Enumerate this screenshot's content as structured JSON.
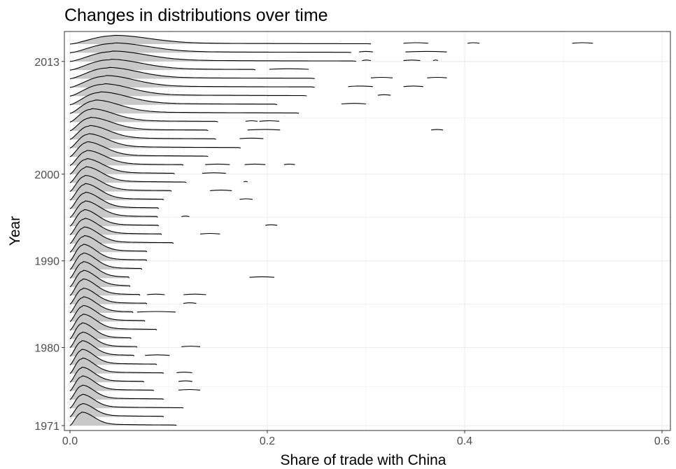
{
  "chart_data": {
    "type": "ridgeline",
    "title": "Changes in distributions over time",
    "xlabel": "Share of trade with China",
    "ylabel": "Year",
    "xlim": [
      0,
      0.6
    ],
    "x_ticks": [
      "0.0",
      "0.2",
      "0.4",
      "0.6"
    ],
    "y_ticks": [
      "1971",
      "1980",
      "1990",
      "2000",
      "2013"
    ],
    "ylim": [
      1971,
      2013
    ],
    "grid": true,
    "fill_color": "#c8c8c8",
    "line_color": "#000000",
    "series": [
      {
        "year": 1971,
        "peak": 0.012,
        "width": 0.012,
        "height": 1.3,
        "tail_end": 0.108,
        "outliers": []
      },
      {
        "year": 1972,
        "peak": 0.012,
        "width": 0.012,
        "height": 1.3,
        "tail_end": 0.095,
        "outliers": []
      },
      {
        "year": 1973,
        "peak": 0.012,
        "width": 0.012,
        "height": 1.35,
        "tail_end": 0.115,
        "outliers": []
      },
      {
        "year": 1974,
        "peak": 0.012,
        "width": 0.012,
        "height": 1.4,
        "tail_end": 0.095,
        "outliers": []
      },
      {
        "year": 1975,
        "peak": 0.012,
        "width": 0.012,
        "height": 1.45,
        "tail_end": 0.085,
        "outliers": [
          [
            0.11,
            0.132
          ]
        ]
      },
      {
        "year": 1976,
        "peak": 0.012,
        "width": 0.012,
        "height": 1.45,
        "tail_end": 0.075,
        "outliers": [
          [
            0.11,
            0.124
          ]
        ]
      },
      {
        "year": 1977,
        "peak": 0.012,
        "width": 0.012,
        "height": 1.5,
        "tail_end": 0.095,
        "outliers": [
          [
            0.108,
            0.124
          ]
        ]
      },
      {
        "year": 1978,
        "peak": 0.012,
        "width": 0.012,
        "height": 1.5,
        "tail_end": 0.088,
        "outliers": []
      },
      {
        "year": 1979,
        "peak": 0.012,
        "width": 0.012,
        "height": 1.5,
        "tail_end": 0.065,
        "outliers": [
          [
            0.076,
            0.101
          ]
        ]
      },
      {
        "year": 1980,
        "peak": 0.012,
        "width": 0.012,
        "height": 1.5,
        "tail_end": 0.068,
        "outliers": [
          [
            0.113,
            0.132
          ]
        ]
      },
      {
        "year": 1981,
        "peak": 0.012,
        "width": 0.012,
        "height": 1.55,
        "tail_end": 0.062,
        "outliers": []
      },
      {
        "year": 1982,
        "peak": 0.013,
        "width": 0.013,
        "height": 1.55,
        "tail_end": 0.088,
        "outliers": []
      },
      {
        "year": 1983,
        "peak": 0.013,
        "width": 0.013,
        "height": 1.55,
        "tail_end": 0.076,
        "outliers": []
      },
      {
        "year": 1984,
        "peak": 0.013,
        "width": 0.013,
        "height": 1.55,
        "tail_end": 0.064,
        "outliers": [
          [
            0.068,
            0.107
          ]
        ]
      },
      {
        "year": 1985,
        "peak": 0.013,
        "width": 0.013,
        "height": 1.55,
        "tail_end": 0.078,
        "outliers": [
          [
            0.115,
            0.128
          ]
        ]
      },
      {
        "year": 1986,
        "peak": 0.013,
        "width": 0.013,
        "height": 1.6,
        "tail_end": 0.071,
        "outliers": [
          [
            0.078,
            0.096
          ],
          [
            0.115,
            0.138
          ]
        ]
      },
      {
        "year": 1987,
        "peak": 0.013,
        "width": 0.013,
        "height": 1.6,
        "tail_end": 0.061,
        "outliers": []
      },
      {
        "year": 1988,
        "peak": 0.013,
        "width": 0.013,
        "height": 1.6,
        "tail_end": 0.06,
        "outliers": [
          [
            0.182,
            0.207
          ]
        ]
      },
      {
        "year": 1989,
        "peak": 0.013,
        "width": 0.013,
        "height": 1.6,
        "tail_end": 0.073,
        "outliers": []
      },
      {
        "year": 1990,
        "peak": 0.013,
        "width": 0.013,
        "height": 1.6,
        "tail_end": 0.078,
        "outliers": []
      },
      {
        "year": 1991,
        "peak": 0.014,
        "width": 0.014,
        "height": 1.6,
        "tail_end": 0.078,
        "outliers": []
      },
      {
        "year": 1992,
        "peak": 0.014,
        "width": 0.014,
        "height": 1.6,
        "tail_end": 0.105,
        "outliers": []
      },
      {
        "year": 1993,
        "peak": 0.014,
        "width": 0.014,
        "height": 1.6,
        "tail_end": 0.093,
        "outliers": [
          [
            0.132,
            0.152
          ]
        ]
      },
      {
        "year": 1994,
        "peak": 0.014,
        "width": 0.014,
        "height": 1.6,
        "tail_end": 0.09,
        "outliers": [
          [
            0.198,
            0.21
          ]
        ]
      },
      {
        "year": 1995,
        "peak": 0.015,
        "width": 0.015,
        "height": 1.6,
        "tail_end": 0.089,
        "outliers": [
          [
            0.113,
            0.121
          ]
        ]
      },
      {
        "year": 1996,
        "peak": 0.015,
        "width": 0.015,
        "height": 1.6,
        "tail_end": 0.09,
        "outliers": []
      },
      {
        "year": 1997,
        "peak": 0.015,
        "width": 0.015,
        "height": 1.6,
        "tail_end": 0.095,
        "outliers": [
          [
            0.172,
            0.185
          ]
        ]
      },
      {
        "year": 1998,
        "peak": 0.015,
        "width": 0.016,
        "height": 1.55,
        "tail_end": 0.103,
        "outliers": [
          [
            0.142,
            0.164
          ]
        ]
      },
      {
        "year": 1999,
        "peak": 0.016,
        "width": 0.016,
        "height": 1.55,
        "tail_end": 0.118,
        "outliers": [
          [
            0.176,
            0.18
          ]
        ]
      },
      {
        "year": 2000,
        "peak": 0.016,
        "width": 0.017,
        "height": 1.5,
        "tail_end": 0.106,
        "outliers": [
          [
            0.134,
            0.158
          ]
        ]
      },
      {
        "year": 2001,
        "peak": 0.017,
        "width": 0.018,
        "height": 1.45,
        "tail_end": 0.115,
        "outliers": [
          [
            0.137,
            0.162
          ],
          [
            0.177,
            0.198
          ],
          [
            0.217,
            0.228
          ]
        ]
      },
      {
        "year": 2002,
        "peak": 0.017,
        "width": 0.018,
        "height": 1.45,
        "tail_end": 0.14,
        "outliers": []
      },
      {
        "year": 2003,
        "peak": 0.018,
        "width": 0.019,
        "height": 1.4,
        "tail_end": 0.173,
        "outliers": []
      },
      {
        "year": 2004,
        "peak": 0.019,
        "width": 0.02,
        "height": 1.35,
        "tail_end": 0.148,
        "outliers": [
          [
            0.172,
            0.196
          ]
        ]
      },
      {
        "year": 2005,
        "peak": 0.02,
        "width": 0.022,
        "height": 1.3,
        "tail_end": 0.14,
        "outliers": [
          [
            0.18,
            0.213
          ],
          [
            0.366,
            0.378
          ]
        ]
      },
      {
        "year": 2006,
        "peak": 0.021,
        "width": 0.023,
        "height": 1.3,
        "tail_end": 0.15,
        "outliers": [
          [
            0.178,
            0.19
          ],
          [
            0.192,
            0.212
          ]
        ]
      },
      {
        "year": 2007,
        "peak": 0.025,
        "width": 0.025,
        "height": 1.3,
        "tail_end": 0.232,
        "outliers": []
      },
      {
        "year": 2008,
        "peak": 0.03,
        "width": 0.028,
        "height": 1.25,
        "tail_end": 0.21,
        "outliers": [
          [
            0.275,
            0.3
          ]
        ]
      },
      {
        "year": 2009,
        "peak": 0.033,
        "width": 0.028,
        "height": 1.2,
        "tail_end": 0.24,
        "outliers": [
          [
            0.312,
            0.325
          ]
        ]
      },
      {
        "year": 2010,
        "peak": 0.036,
        "width": 0.029,
        "height": 1.15,
        "tail_end": 0.248,
        "outliers": [
          [
            0.282,
            0.307
          ],
          [
            0.338,
            0.358
          ]
        ]
      },
      {
        "year": 2011,
        "peak": 0.038,
        "width": 0.03,
        "height": 1.1,
        "tail_end": 0.248,
        "outliers": [
          [
            0.305,
            0.327
          ],
          [
            0.362,
            0.382
          ]
        ]
      },
      {
        "year": 2012,
        "peak": 0.04,
        "width": 0.032,
        "height": 1.05,
        "tail_end": 0.188,
        "outliers": [
          [
            0.202,
            0.242
          ]
        ]
      },
      {
        "year": 2013,
        "peak": 0.043,
        "width": 0.034,
        "height": 1.0,
        "tail_end": 0.29,
        "outliers": [
          [
            0.296,
            0.305
          ],
          [
            0.338,
            0.355
          ],
          [
            0.368,
            0.373
          ]
        ]
      },
      {
        "year": 2014,
        "peak": 0.044,
        "width": 0.035,
        "height": 0.95,
        "tail_end": 0.285,
        "outliers": [
          [
            0.293,
            0.307
          ],
          [
            0.34,
            0.382
          ]
        ]
      },
      {
        "year": 2015,
        "peak": 0.044,
        "width": 0.036,
        "height": 0.85,
        "tail_end": 0.305,
        "outliers": [
          [
            0.338,
            0.363
          ],
          [
            0.403,
            0.415
          ],
          [
            0.509,
            0.53
          ]
        ]
      }
    ]
  }
}
